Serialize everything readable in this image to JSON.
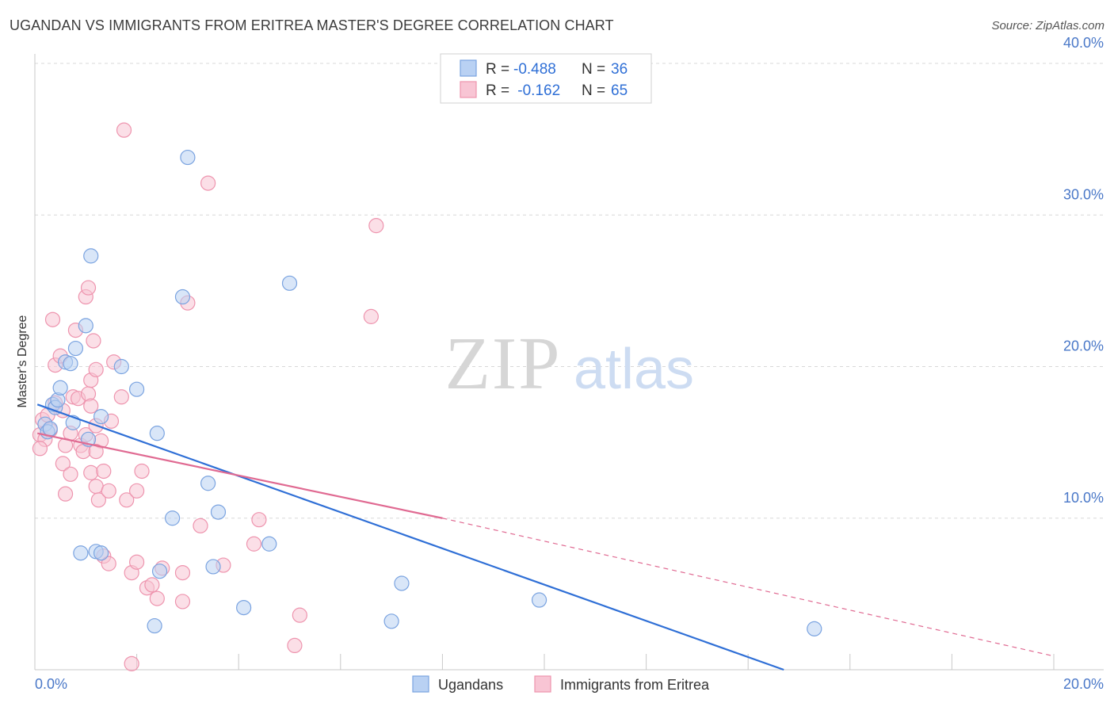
{
  "header": {
    "title": "UGANDAN VS IMMIGRANTS FROM ERITREA MASTER'S DEGREE CORRELATION CHART",
    "source": "Source: ZipAtlas.com"
  },
  "watermark": {
    "zip": "ZIP",
    "atlas": "atlas"
  },
  "colors": {
    "blue_fill": "#b9d1f3",
    "blue_stroke": "#7aa3e0",
    "blue_line": "#2f6fd6",
    "pink_fill": "#f8c5d4",
    "pink_stroke": "#ee94ae",
    "pink_line": "#e06a92",
    "tick_label": "#4a78c8",
    "grid": "#d8d8d8"
  },
  "chart_data": {
    "type": "scatter",
    "title": "UGANDAN VS IMMIGRANTS FROM ERITREA MASTER'S DEGREE CORRELATION CHART",
    "xlabel": "",
    "ylabel": "Master's Degree",
    "xlim": [
      0,
      20
    ],
    "ylim": [
      0,
      40
    ],
    "x_tick_labels": [
      "0.0%",
      "20.0%"
    ],
    "y_ticks": [
      10,
      20,
      30,
      40
    ],
    "y_tick_labels": [
      "10.0%",
      "20.0%",
      "30.0%",
      "40.0%"
    ],
    "legend": {
      "placement": "top-center",
      "entries": [
        {
          "r_label": "R =",
          "r_value": "-0.488",
          "n_label": "N =",
          "n_value": "36"
        },
        {
          "r_label": "R =",
          "r_value": " -0.162",
          "n_label": "N =",
          "n_value": "65"
        }
      ]
    },
    "bottom_legend": [
      "Ugandans",
      "Immigrants from Eritrea"
    ],
    "series": [
      {
        "name": "Ugandans",
        "color": "blue",
        "points": [
          [
            0.2,
            16.2
          ],
          [
            0.25,
            15.7
          ],
          [
            0.3,
            15.9
          ],
          [
            0.35,
            17.5
          ],
          [
            0.4,
            17.3
          ],
          [
            0.45,
            17.8
          ],
          [
            0.5,
            18.6
          ],
          [
            0.6,
            20.3
          ],
          [
            0.7,
            20.2
          ],
          [
            0.8,
            21.2
          ],
          [
            0.75,
            16.3
          ],
          [
            1.0,
            22.7
          ],
          [
            1.1,
            27.3
          ],
          [
            1.3,
            16.7
          ],
          [
            1.05,
            15.2
          ],
          [
            1.7,
            20.0
          ],
          [
            2.0,
            18.5
          ],
          [
            2.4,
            15.6
          ],
          [
            2.9,
            24.6
          ],
          [
            3.0,
            33.8
          ],
          [
            2.7,
            10.0
          ],
          [
            3.4,
            12.3
          ],
          [
            3.6,
            10.4
          ],
          [
            5.0,
            25.5
          ],
          [
            1.2,
            7.8
          ],
          [
            0.9,
            7.7
          ],
          [
            1.3,
            7.7
          ],
          [
            2.45,
            6.5
          ],
          [
            3.5,
            6.8
          ],
          [
            4.6,
            8.3
          ],
          [
            2.35,
            2.9
          ],
          [
            4.1,
            4.1
          ],
          [
            7.2,
            5.7
          ],
          [
            7.0,
            3.2
          ],
          [
            9.9,
            4.6
          ],
          [
            15.3,
            2.7
          ]
        ],
        "trend": {
          "x0": 0.05,
          "y0": 17.5,
          "x1": 14.7,
          "y1": 0.0
        }
      },
      {
        "name": "Immigrants from Eritrea",
        "color": "pink",
        "points": [
          [
            0.1,
            15.5
          ],
          [
            0.15,
            16.5
          ],
          [
            0.2,
            15.2
          ],
          [
            0.25,
            16.8
          ],
          [
            0.3,
            15.8
          ],
          [
            0.1,
            14.6
          ],
          [
            0.35,
            23.1
          ],
          [
            0.4,
            17.6
          ],
          [
            0.4,
            20.1
          ],
          [
            0.5,
            20.7
          ],
          [
            0.55,
            13.6
          ],
          [
            0.6,
            11.6
          ],
          [
            0.6,
            14.8
          ],
          [
            0.7,
            12.9
          ],
          [
            0.75,
            18.0
          ],
          [
            0.7,
            15.6
          ],
          [
            0.8,
            22.4
          ],
          [
            0.9,
            14.8
          ],
          [
            0.95,
            14.4
          ],
          [
            0.85,
            17.9
          ],
          [
            1.0,
            15.5
          ],
          [
            1.05,
            18.2
          ],
          [
            1.1,
            19.1
          ],
          [
            1.1,
            17.4
          ],
          [
            1.2,
            16.1
          ],
          [
            1.2,
            19.8
          ],
          [
            1.0,
            24.6
          ],
          [
            1.05,
            25.2
          ],
          [
            1.15,
            21.7
          ],
          [
            1.1,
            13.0
          ],
          [
            1.2,
            12.1
          ],
          [
            1.25,
            11.2
          ],
          [
            1.3,
            15.1
          ],
          [
            1.35,
            13.1
          ],
          [
            1.45,
            11.8
          ],
          [
            1.5,
            16.4
          ],
          [
            1.55,
            20.3
          ],
          [
            1.7,
            18.0
          ],
          [
            1.8,
            11.2
          ],
          [
            1.75,
            35.6
          ],
          [
            2.0,
            11.8
          ],
          [
            2.1,
            13.1
          ],
          [
            1.9,
            6.4
          ],
          [
            2.0,
            7.1
          ],
          [
            2.2,
            5.4
          ],
          [
            2.3,
            5.6
          ],
          [
            2.4,
            4.7
          ],
          [
            1.35,
            7.5
          ],
          [
            1.45,
            7.0
          ],
          [
            2.9,
            6.4
          ],
          [
            2.9,
            4.5
          ],
          [
            3.0,
            24.2
          ],
          [
            3.4,
            32.1
          ],
          [
            3.25,
            9.5
          ],
          [
            3.7,
            6.9
          ],
          [
            4.3,
            8.3
          ],
          [
            4.4,
            9.9
          ],
          [
            5.2,
            3.6
          ],
          [
            5.1,
            1.6
          ],
          [
            6.6,
            23.3
          ],
          [
            6.7,
            29.3
          ],
          [
            2.5,
            6.7
          ],
          [
            1.9,
            0.4
          ],
          [
            1.2,
            14.4
          ],
          [
            0.55,
            17.1
          ]
        ],
        "trend_solid": {
          "x0": 0.05,
          "y0": 15.6,
          "x1": 8.0,
          "y1": 10.0
        },
        "trend_dashed": {
          "x0": 8.0,
          "y0": 10.0,
          "x1": 20.0,
          "y1": 0.9
        }
      }
    ]
  }
}
